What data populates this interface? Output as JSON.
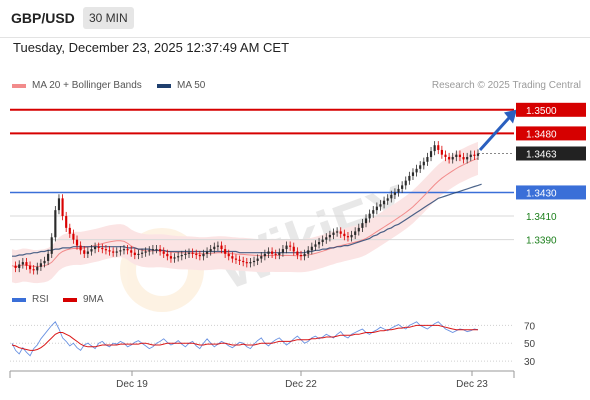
{
  "header": {
    "symbol": "GBP/USD",
    "timeframe": "30 MIN",
    "datetime": "Tuesday, December 23, 2025 12:37:49 AM CET"
  },
  "legend": {
    "ma20_label": "MA 20 + Bollinger Bands",
    "ma50_label": "MA 50",
    "rsi_label": "RSI",
    "ma9_label": "9MA"
  },
  "credit": "Research © 2025 Trading Central",
  "watermark_text": "WikiFX",
  "colors": {
    "resistance": "#d60000",
    "support": "#3a6fd8",
    "current": "#222222",
    "target": "#d8d8d8",
    "ma20": "#f28b8b",
    "ma50": "#1f3f6e",
    "bull": "#2b2b2b",
    "bear": "#d90000",
    "rsi": "#3a6fd8",
    "rsi_ma": "#d60000",
    "arrow": "#2a5fbf"
  },
  "chart_data": [
    {
      "type": "candlestick",
      "title": "",
      "x_tick_labels": [
        "Dec 19",
        "Dec 22",
        "Dec 23"
      ],
      "y_range": [
        1.3366,
        1.351
      ],
      "levels": [
        {
          "label": "1.3500",
          "value": 1.35,
          "kind": "resistance"
        },
        {
          "label": "1.3480",
          "value": 1.348,
          "kind": "resistance"
        },
        {
          "label": "1.3463",
          "value": 1.3463,
          "kind": "current"
        },
        {
          "label": "1.3430",
          "value": 1.343,
          "kind": "support"
        },
        {
          "label": "1.3410",
          "value": 1.341,
          "kind": "target"
        },
        {
          "label": "1.3390",
          "value": 1.339,
          "kind": "target"
        }
      ],
      "series": [
        {
          "name": "Close",
          "values": [
            1.3368,
            1.3366,
            1.3369,
            1.3371,
            1.3368,
            1.3365,
            1.3364,
            1.3367,
            1.337,
            1.3372,
            1.3378,
            1.3392,
            1.3415,
            1.3425,
            1.341,
            1.34,
            1.3395,
            1.339,
            1.3385,
            1.3381,
            1.3378,
            1.338,
            1.3382,
            1.3384,
            1.3383,
            1.3382,
            1.3381,
            1.338,
            1.3379,
            1.338,
            1.3381,
            1.3382,
            1.3381,
            1.3379,
            1.3377,
            1.3378,
            1.3379,
            1.338,
            1.3381,
            1.3382,
            1.3382,
            1.338,
            1.3378,
            1.3376,
            1.3374,
            1.3375,
            1.3376,
            1.3377,
            1.3378,
            1.3379,
            1.3378,
            1.3377,
            1.3376,
            1.3378,
            1.338,
            1.3382,
            1.3384,
            1.3385,
            1.3382,
            1.3378,
            1.3376,
            1.3374,
            1.3373,
            1.3372,
            1.3371,
            1.337,
            1.3371,
            1.3372,
            1.3374,
            1.3376,
            1.3378,
            1.338,
            1.3378,
            1.3377,
            1.3379,
            1.3382,
            1.3385,
            1.3384,
            1.338,
            1.3377,
            1.3376,
            1.3378,
            1.3381,
            1.3384,
            1.3386,
            1.3388,
            1.339,
            1.3392,
            1.3394,
            1.3396,
            1.3397,
            1.3395,
            1.3393,
            1.3392,
            1.3394,
            1.3397,
            1.34,
            1.3404,
            1.3408,
            1.3412,
            1.3415,
            1.3418,
            1.342,
            1.3423,
            1.3425,
            1.3428,
            1.343,
            1.3433,
            1.3436,
            1.344,
            1.3444,
            1.3447,
            1.345,
            1.3453,
            1.3456,
            1.346,
            1.3465,
            1.347,
            1.3466,
            1.3462,
            1.346,
            1.3458,
            1.346,
            1.3462,
            1.346,
            1.3458,
            1.346,
            1.3462,
            1.3461,
            1.3463
          ]
        },
        {
          "name": "MA 50",
          "values": [
            1.3376,
            1.3376,
            1.3377,
            1.3377,
            1.3378,
            1.3378,
            1.3379,
            1.3379,
            1.338,
            1.338,
            1.3381,
            1.3381,
            1.3382,
            1.3382,
            1.3383,
            1.3383,
            1.3383,
            1.3384,
            1.3384,
            1.3384,
            1.3384,
            1.3384,
            1.3384,
            1.3384,
            1.3384,
            1.3384,
            1.3384,
            1.3384,
            1.3384,
            1.3384,
            1.3384,
            1.3384,
            1.3383,
            1.3383,
            1.3383,
            1.3382,
            1.3382,
            1.3382,
            1.3382,
            1.3381,
            1.3381,
            1.3381,
            1.3381,
            1.338,
            1.338,
            1.338,
            1.338,
            1.338,
            1.338,
            1.338,
            1.338,
            1.338,
            1.338,
            1.338,
            1.338,
            1.338,
            1.338,
            1.338,
            1.338,
            1.338,
            1.338,
            1.338,
            1.338,
            1.3379,
            1.3379,
            1.3379,
            1.3379,
            1.3379,
            1.3379,
            1.3379,
            1.3379,
            1.3379,
            1.3379,
            1.3379,
            1.3379,
            1.3379,
            1.3379,
            1.3379,
            1.3379,
            1.3379,
            1.3379,
            1.3379,
            1.338,
            1.338,
            1.3381,
            1.3381,
            1.3382,
            1.3382,
            1.3383,
            1.3383,
            1.3384,
            1.3384,
            1.3385,
            1.3385,
            1.3386,
            1.3387,
            1.3388,
            1.3389,
            1.339,
            1.3391,
            1.3393,
            1.3394,
            1.3396,
            1.3397,
            1.3399,
            1.34,
            1.3402,
            1.3403,
            1.3405,
            1.3407,
            1.3409,
            1.3411,
            1.3413,
            1.3415,
            1.3417,
            1.3419,
            1.3421,
            1.3423,
            1.3425,
            1.3426,
            1.3427,
            1.3428,
            1.3429,
            1.343,
            1.3431,
            1.3432,
            1.3433,
            1.3434,
            1.3435,
            1.3436,
            1.3437
          ]
        }
      ],
      "bb_half_width": 0.0014
    },
    {
      "type": "line",
      "title": "",
      "y_tick_labels": [
        "70",
        "50",
        "30"
      ],
      "y_range": [
        20,
        85
      ],
      "series": [
        {
          "name": "RSI",
          "values": [
            50,
            42,
            38,
            45,
            40,
            36,
            44,
            48,
            55,
            60,
            65,
            70,
            74,
            66,
            56,
            52,
            47,
            50,
            45,
            42,
            48,
            50,
            47,
            44,
            50,
            52,
            48,
            46,
            50,
            49,
            52,
            50,
            46,
            48,
            51,
            53,
            50,
            47,
            44,
            46,
            50,
            52,
            55,
            51,
            48,
            50,
            53,
            49,
            46,
            50,
            52,
            47,
            44,
            50,
            55,
            50,
            46,
            49,
            52,
            50,
            47,
            45,
            48,
            51,
            50,
            46,
            44,
            49,
            53,
            56,
            50,
            47,
            51,
            54,
            56,
            52,
            48,
            51,
            55,
            58,
            54,
            50,
            52,
            56,
            58,
            55,
            57,
            60,
            58,
            56,
            60,
            63,
            58,
            56,
            60,
            62,
            64,
            66,
            62,
            60,
            63,
            65,
            68,
            66,
            64,
            67,
            69,
            71,
            68,
            66,
            70,
            72,
            74,
            70,
            68,
            66,
            69,
            72,
            74,
            70,
            66,
            64,
            62,
            64,
            66,
            65,
            63,
            64,
            66,
            65
          ]
        },
        {
          "name": "9MA",
          "values": [
            48,
            47,
            45,
            44,
            43,
            42,
            42,
            43,
            45,
            48,
            52,
            56,
            60,
            62,
            62,
            60,
            58,
            55,
            52,
            49,
            47,
            46,
            46,
            46,
            47,
            48,
            48,
            48,
            48,
            48,
            49,
            49,
            49,
            49,
            49,
            49,
            50,
            50,
            49,
            48,
            48,
            48,
            49,
            50,
            50,
            50,
            50,
            50,
            50,
            50,
            50,
            49,
            48,
            48,
            49,
            49,
            49,
            49,
            50,
            50,
            49,
            48,
            48,
            48,
            49,
            48,
            48,
            48,
            49,
            50,
            50,
            50,
            50,
            51,
            52,
            52,
            52,
            52,
            53,
            54,
            54,
            54,
            54,
            55,
            55,
            56,
            56,
            57,
            57,
            57,
            58,
            59,
            59,
            59,
            59,
            60,
            60,
            61,
            62,
            62,
            62,
            63,
            64,
            64,
            65,
            65,
            66,
            67,
            67,
            68,
            68,
            69,
            70,
            70,
            70,
            70,
            70,
            70,
            70,
            69,
            68,
            67,
            66,
            65,
            65,
            65,
            65,
            65,
            65,
            65
          ]
        }
      ]
    }
  ]
}
